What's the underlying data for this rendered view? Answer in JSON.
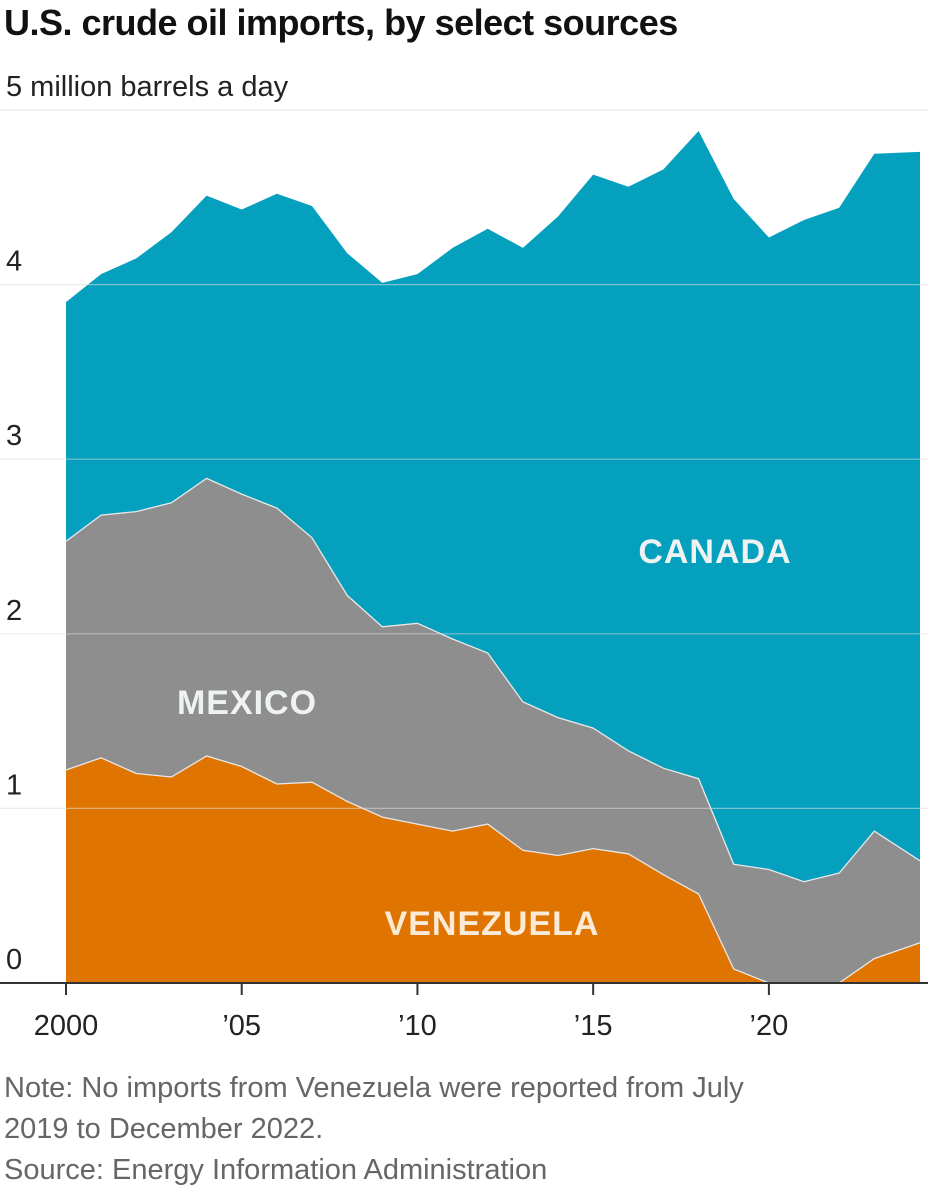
{
  "title": "U.S. crude oil imports, by select sources",
  "colors": {
    "canada": "#04a0bd",
    "mexico": "#8e8e8e",
    "venezuela": "#e07400",
    "grid": "#dddddd",
    "axis": "#333333",
    "label_light": "#eef2f2",
    "label_venezuela": "#fbead6"
  },
  "chart_data": {
    "type": "area",
    "stacked": true,
    "title": "U.S. crude oil imports, by select sources",
    "ylabel": "5 million barrels a day",
    "ylim": [
      0,
      5
    ],
    "y_ticks": [
      0,
      1,
      2,
      3,
      4,
      5
    ],
    "y_tick_labels": [
      "0",
      "1",
      "2",
      "3",
      "4",
      "5 million barrels a day"
    ],
    "xlim": [
      2000,
      2024.3
    ],
    "x_ticks": [
      2000,
      2005,
      2010,
      2015,
      2020
    ],
    "x_tick_labels": [
      "2000",
      "’05",
      "’10",
      "’15",
      "’20"
    ],
    "x": [
      2000,
      2001,
      2002,
      2003,
      2004,
      2005,
      2006,
      2007,
      2008,
      2009,
      2010,
      2011,
      2012,
      2013,
      2014,
      2015,
      2016,
      2017,
      2018,
      2019,
      2020,
      2021,
      2022,
      2023,
      2024.3
    ],
    "series": [
      {
        "name": "Venezuela",
        "label": "VENEZUELA",
        "values": [
          1.22,
          1.29,
          1.2,
          1.18,
          1.3,
          1.24,
          1.14,
          1.15,
          1.04,
          0.95,
          0.91,
          0.87,
          0.91,
          0.76,
          0.73,
          0.77,
          0.74,
          0.62,
          0.51,
          0.08,
          0.0,
          0.0,
          0.0,
          0.14,
          0.23
        ]
      },
      {
        "name": "Mexico",
        "label": "MEXICO",
        "values": [
          1.31,
          1.39,
          1.5,
          1.57,
          1.59,
          1.56,
          1.58,
          1.4,
          1.18,
          1.09,
          1.15,
          1.1,
          0.98,
          0.85,
          0.79,
          0.69,
          0.59,
          0.61,
          0.66,
          0.6,
          0.65,
          0.58,
          0.63,
          0.73,
          0.47
        ]
      },
      {
        "name": "Canada",
        "label": "CANADA",
        "values": [
          1.37,
          1.38,
          1.45,
          1.55,
          1.62,
          1.63,
          1.8,
          1.9,
          1.96,
          1.97,
          2.0,
          2.24,
          2.43,
          2.6,
          2.87,
          3.17,
          3.23,
          3.43,
          3.71,
          3.81,
          3.62,
          3.79,
          3.81,
          3.88,
          4.06
        ]
      }
    ],
    "labels": {
      "canada": "CANADA",
      "mexico": "MEXICO",
      "venezuela": "VENEZUELA"
    }
  },
  "notes": {
    "note_line1": "Note: No imports from Venezuela were reported from July",
    "note_line2": "2019 to December 2022.",
    "source": "Source: Energy Information Administration"
  }
}
